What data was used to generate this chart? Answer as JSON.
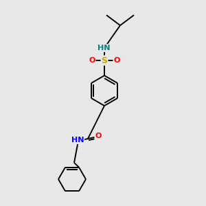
{
  "background_color": "#e8e8e8",
  "bond_color": "#000000",
  "atom_colors": {
    "N": "#0000ff",
    "O": "#ff0000",
    "S": "#ccaa00",
    "HN_sulfonamide": "#008080",
    "HN_amide": "#0000ff",
    "C": "#000000"
  },
  "figsize": [
    3.0,
    3.0
  ],
  "dpi": 100,
  "bond_lw": 1.4,
  "font_size": 8.0
}
